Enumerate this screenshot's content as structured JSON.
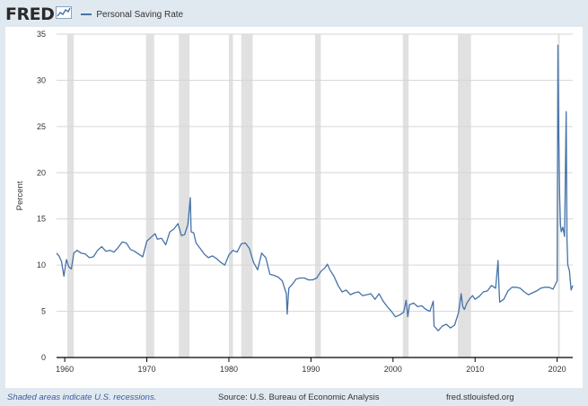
{
  "header": {
    "logo_text": "FRED",
    "logo_icon": "line-chart-icon",
    "legend_label": "Personal Saving Rate"
  },
  "footer": {
    "recession_note": "Shaded areas indicate U.S. recessions.",
    "source": "Source: U.S. Bureau of Economic Analysis",
    "site": "fred.stlouisfed.org"
  },
  "colors": {
    "line": "#4572a7",
    "recession_shade": "#e1e1e1",
    "grid": "#d6d6d6",
    "background": "#e1e9f0",
    "plot": "#ffffff"
  },
  "chart_data": {
    "type": "line",
    "title": "",
    "xlabel": "",
    "ylabel": "Percent",
    "xlim": [
      1959.0,
      2021.9
    ],
    "ylim": [
      0,
      35
    ],
    "y_ticks": [
      0,
      5,
      10,
      15,
      20,
      25,
      30,
      35
    ],
    "x_ticks": [
      1960,
      1970,
      1980,
      1990,
      2000,
      2010,
      2020
    ],
    "x_tick_labels": [
      "1960",
      "1970",
      "1980",
      "1990",
      "2000",
      "2010",
      "2020"
    ],
    "grid": "horizontal",
    "legend_position": "top-left",
    "recessions": [
      [
        1960.3,
        1961.1
      ],
      [
        1969.9,
        1970.9
      ],
      [
        1973.9,
        1975.2
      ],
      [
        1980.0,
        1980.5
      ],
      [
        1981.5,
        1982.9
      ],
      [
        1990.5,
        1991.2
      ],
      [
        2001.2,
        2001.9
      ],
      [
        2007.9,
        2009.5
      ],
      [
        2020.1,
        2020.3
      ]
    ],
    "series": [
      {
        "name": "Personal Saving Rate",
        "x": [
          1959.0,
          1959.3,
          1959.6,
          1959.9,
          1960.2,
          1960.5,
          1960.8,
          1961.1,
          1961.5,
          1962.0,
          1962.5,
          1963.0,
          1963.5,
          1964.0,
          1964.5,
          1965.0,
          1965.5,
          1966.0,
          1966.5,
          1967.0,
          1967.5,
          1968.0,
          1968.5,
          1969.0,
          1969.5,
          1970.0,
          1970.5,
          1971.0,
          1971.3,
          1971.8,
          1972.3,
          1972.8,
          1973.3,
          1973.8,
          1974.2,
          1974.6,
          1975.0,
          1975.3,
          1975.4,
          1975.7,
          1976.0,
          1976.5,
          1977.0,
          1977.5,
          1978.0,
          1978.5,
          1979.0,
          1979.5,
          1980.0,
          1980.5,
          1981.0,
          1981.5,
          1982.0,
          1982.5,
          1983.0,
          1983.5,
          1984.0,
          1984.5,
          1985.0,
          1985.5,
          1986.0,
          1986.5,
          1987.0,
          1987.1,
          1987.3,
          1987.8,
          1988.2,
          1988.7,
          1989.2,
          1989.7,
          1990.2,
          1990.7,
          1991.2,
          1991.7,
          1992.0,
          1992.3,
          1992.8,
          1993.3,
          1993.8,
          1994.3,
          1994.8,
          1995.3,
          1995.8,
          1996.3,
          1996.8,
          1997.3,
          1997.8,
          1998.3,
          1998.8,
          1999.3,
          1999.8,
          2000.3,
          2000.8,
          2001.3,
          2001.6,
          2001.8,
          2002.0,
          2002.5,
          2003.0,
          2003.5,
          2004.0,
          2004.5,
          2004.9,
          2005.0,
          2005.5,
          2006.0,
          2006.5,
          2007.0,
          2007.5,
          2008.0,
          2008.3,
          2008.5,
          2008.7,
          2009.0,
          2009.3,
          2009.7,
          2010.0,
          2010.5,
          2011.0,
          2011.5,
          2012.0,
          2012.5,
          2012.8,
          2012.9,
          2013.0,
          2013.5,
          2014.0,
          2014.5,
          2015.0,
          2015.5,
          2016.0,
          2016.5,
          2017.0,
          2017.5,
          2018.0,
          2018.5,
          2019.0,
          2019.5,
          2020.0,
          2020.1,
          2020.2,
          2020.3,
          2020.4,
          2020.5,
          2020.7,
          2020.9,
          2021.0,
          2021.1,
          2021.2,
          2021.3,
          2021.5,
          2021.7,
          2021.9
        ],
        "values": [
          11.3,
          11.0,
          10.4,
          8.8,
          10.6,
          9.8,
          9.6,
          11.3,
          11.6,
          11.3,
          11.2,
          10.8,
          10.9,
          11.6,
          12.0,
          11.5,
          11.6,
          11.4,
          11.9,
          12.5,
          12.4,
          11.7,
          11.5,
          11.2,
          10.9,
          12.6,
          13.0,
          13.4,
          12.8,
          12.9,
          12.2,
          13.6,
          13.9,
          14.5,
          13.2,
          13.3,
          14.4,
          17.3,
          13.6,
          13.5,
          12.4,
          11.8,
          11.2,
          10.8,
          11.0,
          10.7,
          10.3,
          10.0,
          11.1,
          11.6,
          11.4,
          12.3,
          12.4,
          11.8,
          10.3,
          9.5,
          11.3,
          10.8,
          9.0,
          8.9,
          8.7,
          8.3,
          6.9,
          4.7,
          7.5,
          8.0,
          8.5,
          8.6,
          8.6,
          8.4,
          8.4,
          8.6,
          9.3,
          9.7,
          10.1,
          9.5,
          8.8,
          7.8,
          7.1,
          7.3,
          6.8,
          7.0,
          7.1,
          6.7,
          6.8,
          6.9,
          6.3,
          6.9,
          6.1,
          5.5,
          5.0,
          4.4,
          4.6,
          4.9,
          6.2,
          4.4,
          5.7,
          5.9,
          5.5,
          5.6,
          5.2,
          5.0,
          6.1,
          3.4,
          2.9,
          3.4,
          3.6,
          3.2,
          3.5,
          4.9,
          6.9,
          5.5,
          5.2,
          5.9,
          6.3,
          6.7,
          6.3,
          6.6,
          7.1,
          7.2,
          7.8,
          7.5,
          10.5,
          7.9,
          6.0,
          6.3,
          7.2,
          7.6,
          7.6,
          7.5,
          7.1,
          6.8,
          7.0,
          7.2,
          7.5,
          7.6,
          7.6,
          7.4,
          8.3,
          33.8,
          23.5,
          17.5,
          14.4,
          13.6,
          14.1,
          13.1,
          19.9,
          26.6,
          12.7,
          10.0,
          9.4,
          7.3,
          7.8
        ]
      }
    ]
  }
}
